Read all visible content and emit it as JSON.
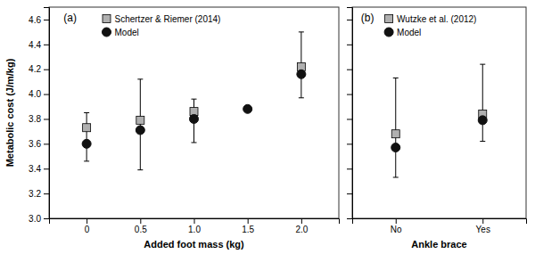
{
  "chart_data": [
    {
      "type": "scatter",
      "title": "(a)",
      "xlabel": "Added foot mass (kg)",
      "ylabel": "Metabolic cost (J/m/kg)",
      "x": [
        0,
        0.5,
        1.0,
        1.5,
        2.0
      ],
      "xlim": [
        -0.35,
        2.35
      ],
      "xticks": [
        0,
        0.5,
        {
          "value": 1.0,
          "label": "1.0"
        },
        1.5,
        {
          "value": 2.0,
          "label": "2.0"
        }
      ],
      "ylim": [
        3.0,
        4.7
      ],
      "yticks": [
        {
          "value": 3.0,
          "label": "3.0"
        },
        3.2,
        3.4,
        3.6,
        3.8,
        {
          "value": 4.0,
          "label": "4.0"
        },
        4.2,
        4.4,
        4.6
      ],
      "grid": false,
      "legend": "upper left",
      "series": [
        {
          "name": "Schertzer & Riemer (2014)",
          "color": "#b0b0b0",
          "marker": "square",
          "values": [
            3.73,
            3.79,
            3.86,
            null,
            4.22
          ],
          "error_low": [
            0.27,
            0.4,
            0.25,
            null,
            0.25
          ],
          "error_high": [
            0.12,
            0.33,
            0.1,
            null,
            0.28
          ]
        },
        {
          "name": "Model",
          "color": "#111111",
          "marker": "circle",
          "values": [
            3.6,
            3.71,
            3.8,
            3.88,
            4.16
          ]
        }
      ]
    },
    {
      "type": "scatter",
      "title": "(b)",
      "xlabel": "Ankle brace",
      "categories": [
        "No",
        "Yes"
      ],
      "ylim": [
        3.0,
        4.7
      ],
      "yticks": [
        3.0,
        3.2,
        3.4,
        3.6,
        3.8,
        4.0,
        4.2,
        4.4,
        4.6
      ],
      "tick_labels": "x",
      "grid": false,
      "legend": "upper left",
      "series": [
        {
          "name": "Wutzke et al. (2012)",
          "color": "#b0b0b0",
          "marker": "square",
          "values": [
            3.68,
            3.84
          ],
          "error_low": [
            0.35,
            0.22
          ],
          "error_high": [
            0.45,
            0.4
          ]
        },
        {
          "name": "Model",
          "color": "#111111",
          "marker": "circle",
          "values": [
            3.57,
            3.79
          ]
        }
      ]
    }
  ]
}
